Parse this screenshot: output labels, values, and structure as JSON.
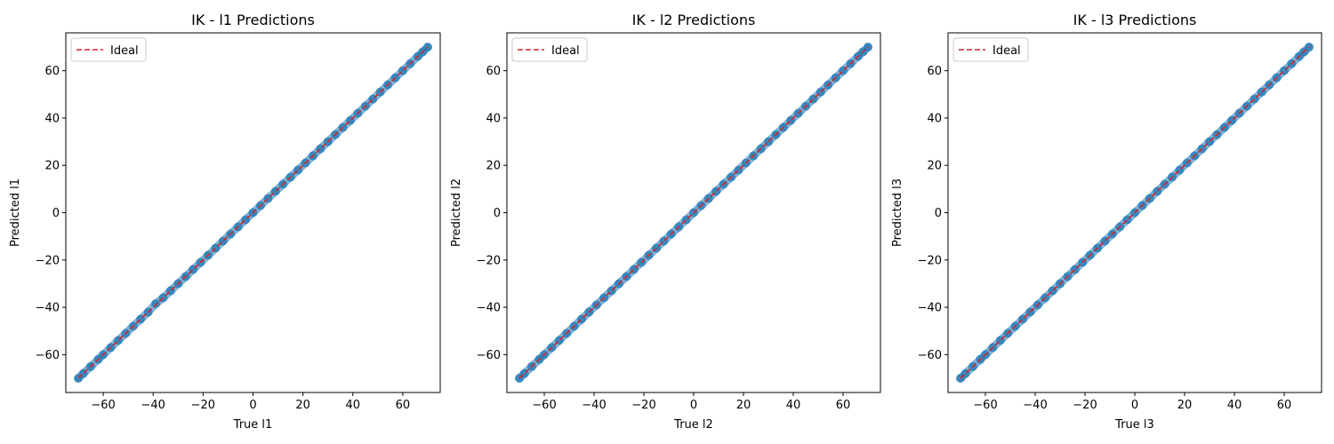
{
  "chart_data": [
    {
      "type": "scatter",
      "title": "IK - l1 Predictions",
      "xlabel": "True l1",
      "ylabel": "Predicted l1",
      "xlim": [
        -75,
        75
      ],
      "ylim": [
        -76,
        76
      ],
      "xticks": [
        -60,
        -40,
        -20,
        0,
        20,
        40,
        60
      ],
      "yticks": [
        -60,
        -40,
        -20,
        0,
        20,
        40,
        60
      ],
      "grid": false,
      "legend": {
        "entries": [
          "Ideal"
        ],
        "placement": "top-left"
      },
      "series": [
        {
          "type": "scatter",
          "color": "#1f77b4",
          "x": [
            -70,
            -68,
            -65,
            -62,
            -60,
            -57,
            -54,
            -51,
            -48,
            -45,
            -42,
            -39,
            -36,
            -33,
            -30,
            -27,
            -24,
            -21,
            -18,
            -15,
            -12,
            -9,
            -6,
            -3,
            0,
            3,
            6,
            9,
            12,
            15,
            18,
            21,
            24,
            27,
            30,
            33,
            36,
            39,
            42,
            45,
            48,
            51,
            54,
            57,
            60,
            63,
            66,
            68,
            70
          ],
          "y": [
            -70,
            -68,
            -65,
            -62,
            -60,
            -57,
            -54,
            -51,
            -48,
            -45,
            -42,
            -38.5,
            -36,
            -33,
            -30,
            -27,
            -24,
            -21,
            -18,
            -15,
            -12,
            -9,
            -6,
            -3,
            0,
            3,
            6,
            9,
            12,
            15,
            18,
            21,
            24,
            27,
            30,
            33,
            36,
            39,
            42,
            45,
            48,
            51,
            54,
            57,
            60,
            63,
            66,
            68,
            70
          ]
        },
        {
          "type": "line",
          "name": "Ideal",
          "color": "#d62728",
          "dash": "dashed",
          "x": [
            -70,
            70
          ],
          "y": [
            -70,
            70
          ]
        }
      ]
    },
    {
      "type": "scatter",
      "title": "IK - l2 Predictions",
      "xlabel": "True l2",
      "ylabel": "Predicted l2",
      "xlim": [
        -75,
        75
      ],
      "ylim": [
        -76,
        76
      ],
      "xticks": [
        -60,
        -40,
        -20,
        0,
        20,
        40,
        60
      ],
      "yticks": [
        -60,
        -40,
        -20,
        0,
        20,
        40,
        60
      ],
      "grid": false,
      "legend": {
        "entries": [
          "Ideal"
        ],
        "placement": "top-left"
      },
      "series": [
        {
          "type": "scatter",
          "color": "#1f77b4",
          "x": [
            -70,
            -68,
            -65,
            -62,
            -60,
            -57,
            -54,
            -51,
            -48,
            -45,
            -42,
            -39,
            -36,
            -33,
            -30,
            -27,
            -24,
            -21,
            -18,
            -15,
            -12,
            -9,
            -6,
            -3,
            0,
            3,
            6,
            9,
            12,
            15,
            18,
            21,
            24,
            27,
            30,
            33,
            36,
            39,
            42,
            45,
            48,
            51,
            54,
            57,
            60,
            63,
            66,
            68,
            70
          ],
          "y": [
            -70,
            -68,
            -65,
            -62,
            -60,
            -57,
            -54,
            -51,
            -48,
            -45,
            -42,
            -39,
            -36,
            -33,
            -30,
            -27,
            -24,
            -21,
            -18,
            -15,
            -12,
            -9,
            -6,
            -3,
            0,
            3,
            6,
            9,
            12,
            15,
            18,
            21,
            24,
            27,
            30,
            33,
            36,
            39,
            42,
            45,
            48,
            51,
            54,
            57,
            60,
            63,
            66,
            68,
            70
          ]
        },
        {
          "type": "line",
          "name": "Ideal",
          "color": "#d62728",
          "dash": "dashed",
          "x": [
            -70,
            70
          ],
          "y": [
            -70,
            70
          ]
        }
      ]
    },
    {
      "type": "scatter",
      "title": "IK - l3 Predictions",
      "xlabel": "True l3",
      "ylabel": "Predicted l3",
      "xlim": [
        -75,
        75
      ],
      "ylim": [
        -76,
        76
      ],
      "xticks": [
        -60,
        -40,
        -20,
        0,
        20,
        40,
        60
      ],
      "yticks": [
        -60,
        -40,
        -20,
        0,
        20,
        40,
        60
      ],
      "grid": false,
      "legend": {
        "entries": [
          "Ideal"
        ],
        "placement": "top-left"
      },
      "series": [
        {
          "type": "scatter",
          "color": "#1f77b4",
          "x": [
            -70,
            -68,
            -65,
            -62,
            -60,
            -57,
            -54,
            -51,
            -48,
            -45,
            -42,
            -39,
            -36,
            -33,
            -30,
            -27,
            -24,
            -21,
            -18,
            -15,
            -12,
            -9,
            -6,
            -3,
            0,
            3,
            6,
            9,
            12,
            15,
            18,
            21,
            24,
            27,
            30,
            33,
            36,
            39,
            42,
            45,
            48,
            51,
            54,
            57,
            60,
            63,
            66,
            68,
            70
          ],
          "y": [
            -70,
            -68,
            -65,
            -62,
            -60,
            -57,
            -54,
            -51,
            -48,
            -45,
            -42,
            -39,
            -36,
            -33,
            -30,
            -27,
            -24,
            -21,
            -18,
            -15,
            -12,
            -9,
            -6,
            -3,
            0,
            3,
            6,
            9,
            12,
            15,
            18,
            21,
            24,
            27,
            30,
            33,
            36,
            39,
            42,
            45,
            48,
            51,
            54,
            57,
            60,
            63,
            66,
            68,
            70
          ]
        },
        {
          "type": "line",
          "name": "Ideal",
          "color": "#d62728",
          "dash": "dashed",
          "x": [
            -70,
            70
          ],
          "y": [
            -70,
            70
          ]
        }
      ]
    }
  ]
}
